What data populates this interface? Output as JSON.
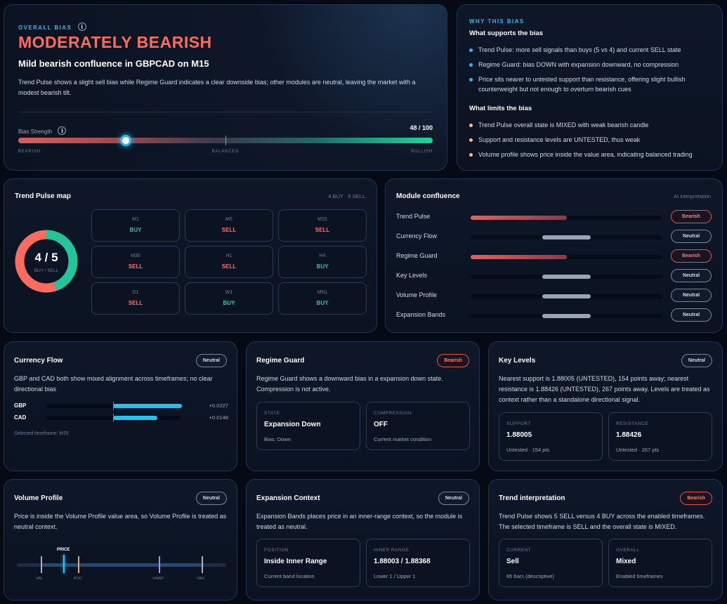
{
  "overall": {
    "eyebrow": "OVERALL BIAS",
    "info_glyph": "i",
    "headline": "MODERATELY BEARISH",
    "subhead": "Mild bearish confluence in GBPCAD on M15",
    "description": "Trend Pulse shows a slight sell bias while Regime Guard indicates a clear downside bias; other modules are neutral, leaving the market with a modest bearish tilt.",
    "strength_label": "Bias Strength",
    "strength_value": "48 / 100",
    "strength_level": 0.26,
    "scale_left": "BEARISH",
    "scale_mid": "BALANCED",
    "scale_right": "BULLISH"
  },
  "why": {
    "eyebrow": "WHY THIS BIAS",
    "supports_title": "What supports the bias",
    "supports": [
      "Trend Pulse: more sell signals than buys (5 vs 4) and current SELL state",
      "Regime Guard: bias DOWN with expansion downward, no compression",
      "Price sits nearer to untested support than resistance, offering slight bullish counterweight but not enough to overturn bearish cues"
    ],
    "limits_title": "What limits the bias",
    "limits": [
      "Trend Pulse overall state is MIXED with weak bearish candle",
      "Support and resistance levels are UNTESTED, thus weak",
      "Volume profile shows price inside the value area, indicating balanced trading"
    ],
    "supports_color": "#2fb8e8",
    "limits_color": "#f2c46d"
  },
  "trend_map": {
    "title": "Trend Pulse map",
    "counts": "4 BUY · 5 SELL",
    "donut_value": "4 / 5",
    "donut_label": "BUY / SELL",
    "buy_count": 4,
    "sell_count": 5,
    "timeframes": [
      {
        "name": "M1",
        "signal": "BUY"
      },
      {
        "name": "M5",
        "signal": "SELL"
      },
      {
        "name": "M15",
        "signal": "SELL"
      },
      {
        "name": "M30",
        "signal": "SELL"
      },
      {
        "name": "H1",
        "signal": "SELL"
      },
      {
        "name": "H4",
        "signal": "BUY"
      },
      {
        "name": "D1",
        "signal": "SELL"
      },
      {
        "name": "W1",
        "signal": "BUY"
      },
      {
        "name": "MN1",
        "signal": "BUY"
      }
    ]
  },
  "confluence": {
    "title": "Module confluence",
    "tag": "AI interpretation",
    "modules": [
      {
        "label": "Trend Pulse",
        "status": "Bearish",
        "kind": "bearish"
      },
      {
        "label": "Currency Flow",
        "status": "Neutral",
        "kind": "neutral"
      },
      {
        "label": "Regime Guard",
        "status": "Bearish",
        "kind": "bearish"
      },
      {
        "label": "Key Levels",
        "status": "Neutral",
        "kind": "neutral"
      },
      {
        "label": "Volume Profile",
        "status": "Neutral",
        "kind": "neutral"
      },
      {
        "label": "Expansion Bands",
        "status": "Neutral",
        "kind": "neutral"
      }
    ]
  },
  "currency_flow": {
    "title": "Currency Flow",
    "status": "Neutral",
    "text": "GBP and CAD both show mixed alignment across timeframes; no clear directional bias",
    "rows": [
      {
        "ccy": "GBP",
        "value": "+0.0227",
        "fill": 0.51
      },
      {
        "ccy": "CAD",
        "value": "+0.0148",
        "fill": 0.33
      }
    ],
    "footer": "Selected timeframe: M15"
  },
  "regime_guard": {
    "title": "Regime Guard",
    "status": "Bearish",
    "text": "Regime Guard shows a downward bias in a expansion down state. Compression is not active.",
    "box1": {
      "label": "STATE",
      "value": "Expansion Down",
      "note": "Bias: Down"
    },
    "box2": {
      "label": "COMPRESSION",
      "value": "OFF",
      "note": "Current market condition"
    }
  },
  "key_levels": {
    "title": "Key Levels",
    "status": "Neutral",
    "text": "Nearest support is 1.88005 (UNTESTED), 154 points away; nearest resistance is 1.88426 (UNTESTED), 267 points away. Levels are treated as context rather than a standalone directional signal.",
    "box1": {
      "label": "SUPPORT",
      "value": "1.88005",
      "note": "Untested · 154 pts"
    },
    "box2": {
      "label": "RESISTANCE",
      "value": "1.88426",
      "note": "Untested · 267 pts"
    }
  },
  "volume_profile": {
    "title": "Volume Profile",
    "status": "Neutral",
    "text": "Price is inside the Volume Profile value area, so Volume Profile is treated as neutral context.",
    "price_label": "PRICE",
    "markers": [
      "VAL",
      "POC",
      "VWAP",
      "VAH"
    ]
  },
  "expansion": {
    "title": "Expansion Context",
    "status": "Neutral",
    "text": "Expansion Bands places price in an inner-range context, so the module is treated as neutral.",
    "box1": {
      "label": "POSITION",
      "value": "Inside Inner Range",
      "note": "Current band location"
    },
    "box2": {
      "label": "INNER RANGE",
      "value": "1.88003 / 1.88368",
      "note": "Lower 1 / Upper 1"
    }
  },
  "trend_interp": {
    "title": "Trend interpretation",
    "status": "Bearish",
    "text": "Trend Pulse shows 5 SELL versus 4 BUY across the enabled timeframes. The selected timeframe is SELL and the overall state is MIXED.",
    "box1": {
      "label": "CURRENT",
      "value": "Sell",
      "note": "65 bars (descriptive)"
    },
    "box2": {
      "label": "OVERALL",
      "value": "Mixed",
      "note": "Enabled timeframes"
    }
  },
  "colors": {
    "bearish": "#ff6b66",
    "bullish": "#22c59a",
    "accent": "#2fb8e8"
  }
}
